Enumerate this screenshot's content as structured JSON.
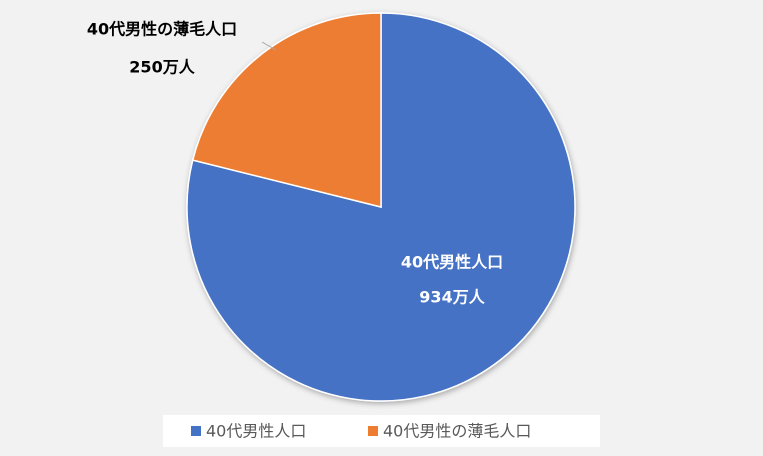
{
  "chart_data": {
    "type": "pie",
    "categories": [
      "40代男性人口",
      "40代男性の薄毛人口"
    ],
    "values": [
      934,
      250
    ],
    "value_labels": [
      "934万人",
      "250万人"
    ],
    "colors": [
      "#4472c4",
      "#ed7d31"
    ],
    "legend": "bottom"
  }
}
